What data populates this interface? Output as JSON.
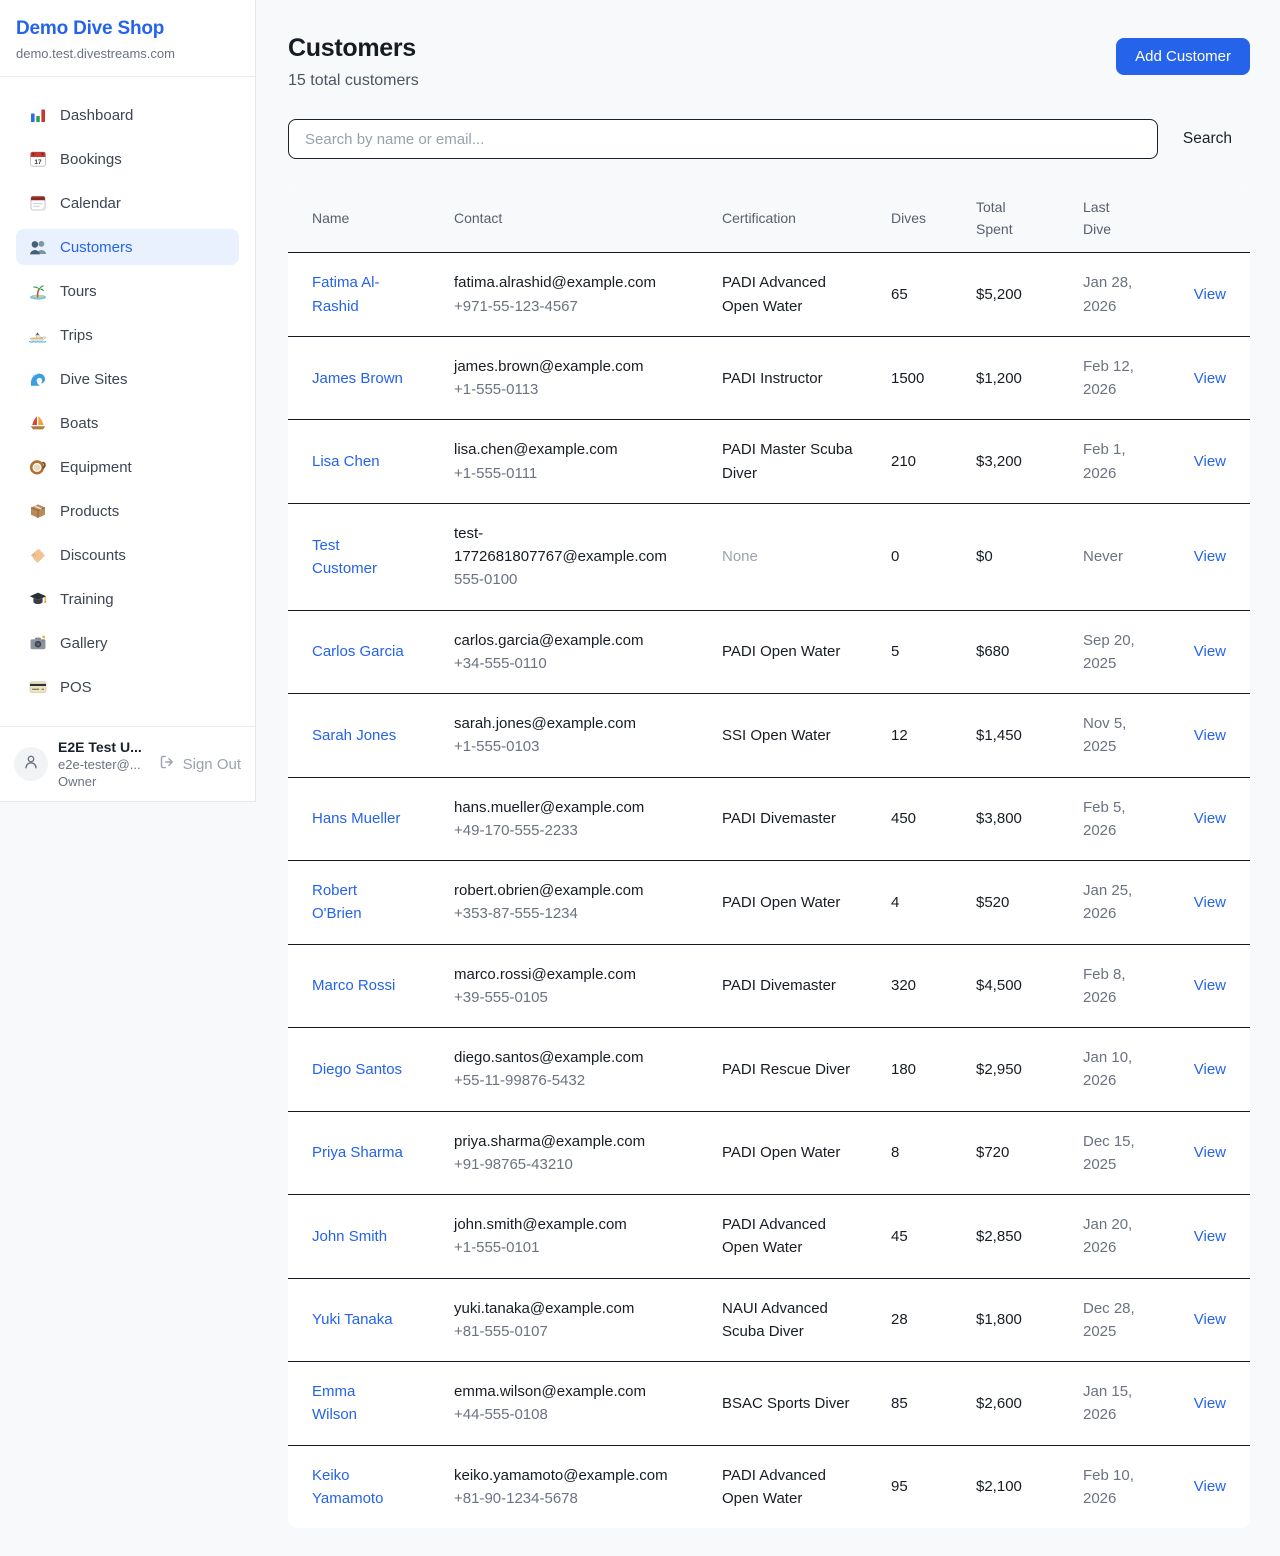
{
  "colors": {
    "accent": "#2563eb",
    "sidebar_active_bg": "#e9f1fe",
    "add_button_bg": "#2563eb"
  },
  "sidebar": {
    "shop_name": "Demo Dive Shop",
    "domain": "demo.test.divestreams.com",
    "items": [
      {
        "label": "Dashboard",
        "icon": "bar-chart-icon",
        "active": false
      },
      {
        "label": "Bookings",
        "icon": "calendar-date-icon",
        "active": false
      },
      {
        "label": "Calendar",
        "icon": "calendar-pad-icon",
        "active": false
      },
      {
        "label": "Customers",
        "icon": "people-icon",
        "active": true
      },
      {
        "label": "Tours",
        "icon": "island-icon",
        "active": false
      },
      {
        "label": "Trips",
        "icon": "speedboat-icon",
        "active": false
      },
      {
        "label": "Dive Sites",
        "icon": "wave-icon",
        "active": false
      },
      {
        "label": "Boats",
        "icon": "sailboat-icon",
        "active": false
      },
      {
        "label": "Equipment",
        "icon": "dive-mask-icon",
        "active": false
      },
      {
        "label": "Products",
        "icon": "package-icon",
        "active": false
      },
      {
        "label": "Discounts",
        "icon": "tag-icon",
        "active": false
      },
      {
        "label": "Training",
        "icon": "grad-cap-icon",
        "active": false
      },
      {
        "label": "Gallery",
        "icon": "camera-icon",
        "active": false
      },
      {
        "label": "POS",
        "icon": "credit-card-icon",
        "active": false
      }
    ],
    "user": {
      "name": "E2E Test U...",
      "email": "e2e-tester@...",
      "role": "Owner",
      "sign_out_label": "Sign Out"
    }
  },
  "header": {
    "title": "Customers",
    "subtitle": "15 total customers",
    "add_button_label": "Add Customer"
  },
  "search": {
    "placeholder": "Search by name or email...",
    "button_label": "Search"
  },
  "table": {
    "columns": [
      "Name",
      "Contact",
      "Certification",
      "Dives",
      "Total Spent",
      "Last Dive",
      ""
    ],
    "rows": [
      {
        "name": "Fatima Al-Rashid",
        "email": "fatima.alrashid@example.com",
        "phone": "+971-55-123-4567",
        "certification": "PADI Advanced Open Water",
        "dives": "65",
        "total_spent": "$5,200",
        "last_dive": "Jan 28, 2026",
        "action": "View"
      },
      {
        "name": "James Brown",
        "email": "james.brown@example.com",
        "phone": "+1-555-0113",
        "certification": "PADI Instructor",
        "dives": "1500",
        "total_spent": "$1,200",
        "last_dive": "Feb 12, 2026",
        "action": "View"
      },
      {
        "name": "Lisa Chen",
        "email": "lisa.chen@example.com",
        "phone": "+1-555-0111",
        "certification": "PADI Master Scuba Diver",
        "dives": "210",
        "total_spent": "$3,200",
        "last_dive": "Feb 1, 2026",
        "action": "View"
      },
      {
        "name": "Test Customer",
        "email": "test-1772681807767@example.com",
        "phone": "555-0100",
        "certification": "None",
        "dives": "0",
        "total_spent": "$0",
        "last_dive": "Never",
        "action": "View"
      },
      {
        "name": "Carlos Garcia",
        "email": "carlos.garcia@example.com",
        "phone": "+34-555-0110",
        "certification": "PADI Open Water",
        "dives": "5",
        "total_spent": "$680",
        "last_dive": "Sep 20, 2025",
        "action": "View"
      },
      {
        "name": "Sarah Jones",
        "email": "sarah.jones@example.com",
        "phone": "+1-555-0103",
        "certification": "SSI Open Water",
        "dives": "12",
        "total_spent": "$1,450",
        "last_dive": "Nov 5, 2025",
        "action": "View"
      },
      {
        "name": "Hans Mueller",
        "email": "hans.mueller@example.com",
        "phone": "+49-170-555-2233",
        "certification": "PADI Divemaster",
        "dives": "450",
        "total_spent": "$3,800",
        "last_dive": "Feb 5, 2026",
        "action": "View"
      },
      {
        "name": "Robert O'Brien",
        "email": "robert.obrien@example.com",
        "phone": "+353-87-555-1234",
        "certification": "PADI Open Water",
        "dives": "4",
        "total_spent": "$520",
        "last_dive": "Jan 25, 2026",
        "action": "View"
      },
      {
        "name": "Marco Rossi",
        "email": "marco.rossi@example.com",
        "phone": "+39-555-0105",
        "certification": "PADI Divemaster",
        "dives": "320",
        "total_spent": "$4,500",
        "last_dive": "Feb 8, 2026",
        "action": "View"
      },
      {
        "name": "Diego Santos",
        "email": "diego.santos@example.com",
        "phone": "+55-11-99876-5432",
        "certification": "PADI Rescue Diver",
        "dives": "180",
        "total_spent": "$2,950",
        "last_dive": "Jan 10, 2026",
        "action": "View"
      },
      {
        "name": "Priya Sharma",
        "email": "priya.sharma@example.com",
        "phone": "+91-98765-43210",
        "certification": "PADI Open Water",
        "dives": "8",
        "total_spent": "$720",
        "last_dive": "Dec 15, 2025",
        "action": "View"
      },
      {
        "name": "John Smith",
        "email": "john.smith@example.com",
        "phone": "+1-555-0101",
        "certification": "PADI Advanced Open Water",
        "dives": "45",
        "total_spent": "$2,850",
        "last_dive": "Jan 20, 2026",
        "action": "View"
      },
      {
        "name": "Yuki Tanaka",
        "email": "yuki.tanaka@example.com",
        "phone": "+81-555-0107",
        "certification": "NAUI Advanced Scuba Diver",
        "dives": "28",
        "total_spent": "$1,800",
        "last_dive": "Dec 28, 2025",
        "action": "View"
      },
      {
        "name": "Emma Wilson",
        "email": "emma.wilson@example.com",
        "phone": "+44-555-0108",
        "certification": "BSAC Sports Diver",
        "dives": "85",
        "total_spent": "$2,600",
        "last_dive": "Jan 15, 2026",
        "action": "View"
      },
      {
        "name": "Keiko Yamamoto",
        "email": "keiko.yamamoto@example.com",
        "phone": "+81-90-1234-5678",
        "certification": "PADI Advanced Open Water",
        "dives": "95",
        "total_spent": "$2,100",
        "last_dive": "Feb 10, 2026",
        "action": "View"
      }
    ]
  }
}
